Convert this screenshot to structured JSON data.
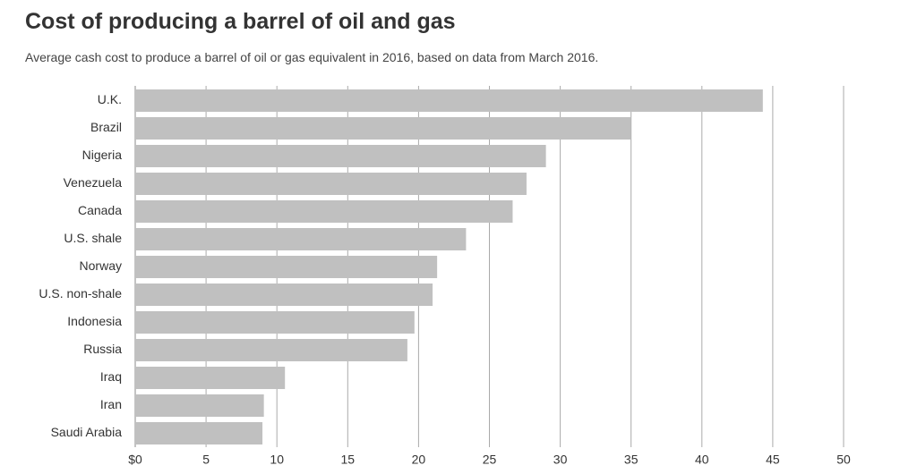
{
  "chart_data": {
    "type": "bar",
    "orientation": "horizontal",
    "title": "Cost of producing a barrel of oil and gas",
    "subtitle": "Average cash cost to produce a barrel of oil or gas equivalent in 2016, based on data from March 2016.",
    "categories": [
      "U.K.",
      "Brazil",
      "Nigeria",
      "Venezuela",
      "Canada",
      "U.S. shale",
      "Norway",
      "U.S. non-shale",
      "Indonesia",
      "Russia",
      "Iraq",
      "Iran",
      "Saudi Arabia"
    ],
    "values": [
      44.3,
      35.0,
      28.99,
      27.62,
      26.64,
      23.35,
      21.31,
      20.99,
      19.71,
      19.21,
      10.57,
      9.08,
      8.98
    ],
    "xlim": [
      0,
      50
    ],
    "xticks": [
      "$0",
      "5",
      "10",
      "15",
      "20",
      "25",
      "30",
      "35",
      "40",
      "45",
      "50"
    ],
    "grid": true,
    "bar_color": "#c0c0c0",
    "grid_color": "#aaaaaa"
  }
}
